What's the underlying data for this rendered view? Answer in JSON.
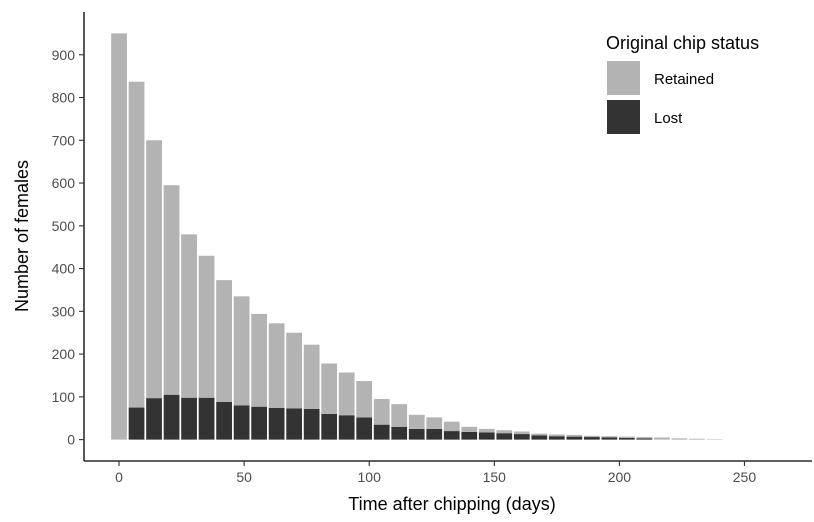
{
  "chart_data": {
    "type": "bar",
    "stacked": true,
    "xlabel": "Time after chipping (days)",
    "ylabel": "Number of females",
    "xlim": [
      -14,
      277
    ],
    "ylim": [
      -50,
      1000
    ],
    "x_ticks": [
      0,
      50,
      100,
      150,
      200,
      250
    ],
    "y_ticks": [
      0,
      100,
      200,
      300,
      400,
      500,
      600,
      700,
      800,
      900
    ],
    "bin_width": 7,
    "x": [
      0,
      7,
      14,
      21,
      28,
      35,
      42,
      49,
      56,
      63,
      70,
      77,
      84,
      91,
      98,
      105,
      112,
      119,
      126,
      133,
      140,
      147,
      154,
      161,
      168,
      175,
      182,
      189,
      196,
      203,
      210,
      217,
      224,
      231,
      238
    ],
    "series": [
      {
        "name": "Lost",
        "color": "#333333",
        "values": [
          0,
          75,
          97,
          105,
          98,
          98,
          88,
          80,
          77,
          74,
          73,
          72,
          60,
          57,
          52,
          35,
          30,
          25,
          25,
          20,
          18,
          17,
          15,
          13,
          10,
          8,
          7,
          6,
          5,
          4,
          3,
          0,
          0,
          0,
          0
        ]
      },
      {
        "name": "Retained",
        "color": "#b3b3b3",
        "values": [
          950,
          762,
          603,
          490,
          382,
          332,
          285,
          255,
          217,
          198,
          177,
          150,
          118,
          100,
          85,
          60,
          53,
          33,
          27,
          22,
          12,
          8,
          7,
          6,
          4,
          4,
          4,
          3,
          3,
          3,
          3,
          5,
          3,
          2,
          1
        ]
      }
    ],
    "legend": {
      "title": "Original chip status",
      "position": "top-right",
      "entries": [
        {
          "label": "Retained",
          "color": "#b3b3b3"
        },
        {
          "label": "Lost",
          "color": "#333333"
        }
      ]
    },
    "grid": false
  }
}
